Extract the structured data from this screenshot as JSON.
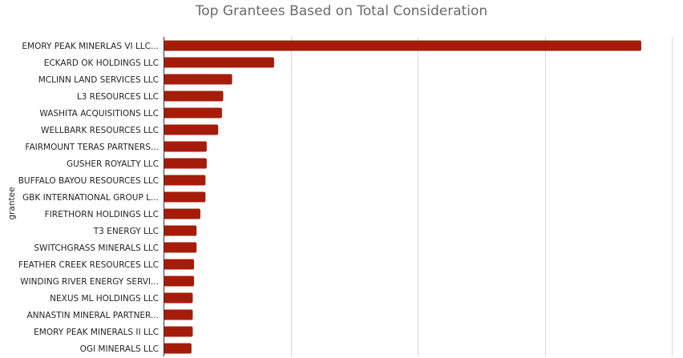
{
  "chart_data": {
    "type": "bar",
    "orientation": "horizontal",
    "title": "Top Grantees Based on Total Consideration",
    "ylabel": "grantee",
    "xlabel": "",
    "categories": [
      "EMORY PEAK MINERLAS VI LLC...",
      "ECKARD OK HOLDINGS LLC",
      "MCLINN LAND SERVICES LLC",
      "L3 RESOURCES LLC",
      "WASHITA ACQUISITIONS LLC",
      "WELLBARK RESOURCES LLC",
      "FAIRMOUNT TERAS PARTNERS...",
      "GUSHER ROYALTY LLC",
      "BUFFALO BAYOU RESOURCES LLC",
      "GBK INTERNATIONAL GROUP L...",
      "FIRETHORN HOLDINGS LLC",
      "T3 ENERGY LLC",
      "SWITCHGRASS MINERALS LLC",
      "FEATHER CREEK RESOURCES LLC",
      "WINDING RIVER ENERGY SERVI...",
      "NEXUS ML HOLDINGS LLC",
      "ANNASTIN MINERAL PARTNER...",
      "EMORY PEAK MINERALS II LLC",
      "OGI MINERALS LLC"
    ],
    "values": [
      3.76,
      0.87,
      0.54,
      0.47,
      0.46,
      0.43,
      0.34,
      0.34,
      0.33,
      0.33,
      0.29,
      0.26,
      0.26,
      0.24,
      0.24,
      0.23,
      0.23,
      0.23,
      0.22
    ],
    "xlim": [
      0,
      4
    ],
    "x_gridlines": [
      1,
      2,
      3,
      4
    ],
    "grid": true,
    "bar_color": "#a51c0a",
    "grid_color": "#d9d9d9",
    "axis_color": "#333333"
  }
}
